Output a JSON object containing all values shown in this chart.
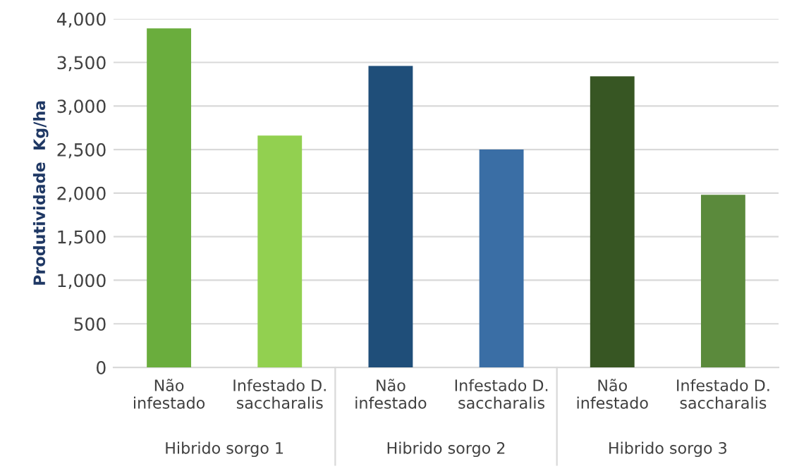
{
  "chart_data": {
    "type": "bar",
    "categories": [
      "Não\ninfestado",
      "Infestado D.\nsaccharalis",
      "Não\ninfestado",
      "Infestado D.\nsaccharalis",
      "Não\ninfestado",
      "Infestado D.\nsaccharalis"
    ],
    "values": [
      3890,
      2660,
      3460,
      2500,
      3340,
      1980
    ],
    "colors": [
      "#6aad3d",
      "#92d050",
      "#1f4e79",
      "#3a6ea5",
      "#375623",
      "#5b8a3c"
    ],
    "ylabel": "Produtividade  Kg/ha",
    "annotations": [
      "Hibrido sorgo 1",
      "Hibrido sorgo 2",
      "Hibrido sorgo 3"
    ],
    "ylim": [
      0,
      4000
    ],
    "yticks": [
      0,
      500,
      {
        "value": 1000,
        "label": "1,000"
      },
      {
        "value": 1500,
        "label": "1,500"
      },
      {
        "value": 2000,
        "label": "2,000"
      },
      {
        "value": 2500,
        "label": "2,500"
      },
      {
        "value": 3000,
        "label": "3,000"
      },
      {
        "value": 3500,
        "label": "3,500"
      },
      {
        "value": 4000,
        "label": "4,000"
      }
    ],
    "grid": "y"
  }
}
